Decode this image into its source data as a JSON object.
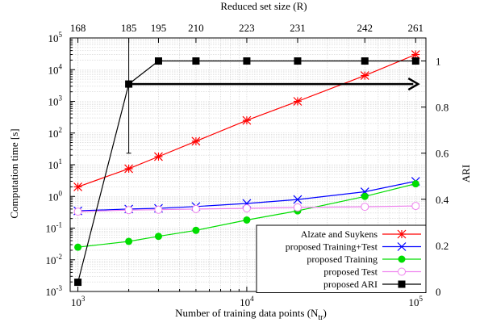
{
  "chart_data": {
    "type": "line",
    "title": "",
    "top_axis": {
      "label": "Reduced set size (R)",
      "ticks": [
        {
          "x": 1000,
          "label": "168"
        },
        {
          "x": 2000,
          "label": "185"
        },
        {
          "x": 3000,
          "label": "195"
        },
        {
          "x": 5000,
          "label": "210"
        },
        {
          "x": 10000,
          "label": "223"
        },
        {
          "x": 20000,
          "label": "231"
        },
        {
          "x": 50000,
          "label": "242"
        },
        {
          "x": 100000,
          "label": "261"
        }
      ]
    },
    "x_axis": {
      "label_main": "Number of training data points (N",
      "label_sub": "tr",
      "label_end": ")",
      "scale": "log",
      "range": [
        900,
        115000
      ],
      "ticks": [
        {
          "value": 1000,
          "base": "10",
          "exp": "3"
        },
        {
          "value": 10000,
          "base": "10",
          "exp": "4"
        },
        {
          "value": 100000,
          "base": "10",
          "exp": "5"
        }
      ]
    },
    "y_left": {
      "label": "Computation time [s]",
      "scale": "log",
      "range": [
        0.001,
        100000
      ],
      "ticks": [
        {
          "value": 0.001,
          "base": "10",
          "exp": "-3"
        },
        {
          "value": 0.01,
          "base": "10",
          "exp": "-2"
        },
        {
          "value": 0.1,
          "base": "10",
          "exp": "-1"
        },
        {
          "value": 1,
          "base": "10",
          "exp": "0"
        },
        {
          "value": 10,
          "base": "10",
          "exp": "1"
        },
        {
          "value": 100,
          "base": "10",
          "exp": "2"
        },
        {
          "value": 1000,
          "base": "10",
          "exp": "3"
        },
        {
          "value": 10000,
          "base": "10",
          "exp": "4"
        },
        {
          "value": 100000,
          "base": "10",
          "exp": "5"
        }
      ]
    },
    "y_right": {
      "label": "ARI",
      "scale": "linear",
      "range": [
        0,
        1.1
      ],
      "ticks": [
        {
          "value": 0,
          "label": "0"
        },
        {
          "value": 0.2,
          "label": "0.2"
        },
        {
          "value": 0.4,
          "label": "0.4"
        },
        {
          "value": 0.6,
          "label": "0.6"
        },
        {
          "value": 0.8,
          "label": "0.8"
        },
        {
          "value": 1,
          "label": "1"
        }
      ]
    },
    "grid": true,
    "legend": {
      "placement": "bottom-right"
    },
    "x": [
      1000,
      2000,
      3000,
      5000,
      10000,
      20000,
      50000,
      100000
    ],
    "series": [
      {
        "name": "Alzate and Suykens",
        "axis": "left",
        "color": "#ff0000",
        "marker": "star",
        "values": [
          2,
          7.5,
          18,
          55,
          250,
          1000,
          6500,
          30000
        ]
      },
      {
        "name": "proposed Training+Test",
        "axis": "left",
        "color": "#0000ff",
        "marker": "x",
        "values": [
          0.35,
          0.4,
          0.42,
          0.48,
          0.6,
          0.8,
          1.4,
          3
        ]
      },
      {
        "name": "proposed Training",
        "axis": "left",
        "color": "#00dd00",
        "marker": "filled-circle",
        "values": [
          0.025,
          0.038,
          0.055,
          0.085,
          0.18,
          0.35,
          1.0,
          2.5
        ]
      },
      {
        "name": "proposed Test",
        "axis": "left",
        "color": "#ee82ee",
        "marker": "open-circle",
        "values": [
          0.33,
          0.37,
          0.38,
          0.4,
          0.42,
          0.45,
          0.47,
          0.5
        ]
      },
      {
        "name": "proposed ARI",
        "axis": "right",
        "color": "#000000",
        "marker": "filled-square",
        "values": [
          0.04,
          0.9,
          1,
          1,
          1,
          1,
          1,
          1
        ],
        "error_bar": {
          "x": 2000,
          "low": 0.6,
          "high": 1.1
        }
      }
    ],
    "annotations": [
      {
        "type": "arrow",
        "axis": "right",
        "from": {
          "x": 2100,
          "y": 0.9
        },
        "to": {
          "x": 100000,
          "y": 0.9
        }
      }
    ]
  }
}
